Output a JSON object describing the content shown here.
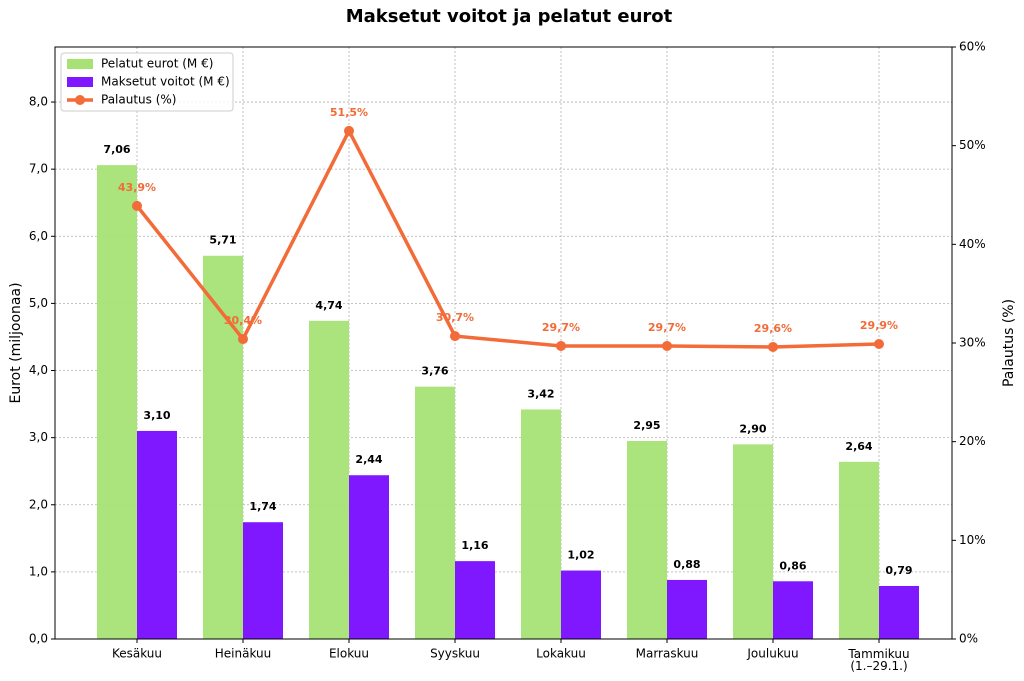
{
  "chart_data": {
    "type": "bar",
    "title": "Maksetut voitot ja pelatut eurot",
    "y_label": "Eurot (miljoonaa)",
    "y2_label": "Palautus (%)",
    "categories": [
      "Kesäkuu",
      "Heinäkuu",
      "Elokuu",
      "Syyskuu",
      "Lokakuu",
      "Marraskuu",
      "Joulukuu",
      "Tammikuu\n(1.–29.1.)"
    ],
    "series": [
      {
        "name": "Pelatut eurot (M €)",
        "type": "bar",
        "color": "#a6e275",
        "values": [
          7.06,
          5.71,
          4.74,
          3.76,
          3.42,
          2.95,
          2.9,
          2.64
        ],
        "value_labels": [
          "7,06",
          "5,71",
          "4,74",
          "3,76",
          "3,42",
          "2,95",
          "2,90",
          "2,64"
        ]
      },
      {
        "name": "Maksetut voitot (M €)",
        "type": "bar",
        "color": "#7f17ff",
        "values": [
          3.1,
          1.74,
          2.44,
          1.16,
          1.02,
          0.88,
          0.86,
          0.79
        ],
        "value_labels": [
          "3,10",
          "1,74",
          "2,44",
          "1,16",
          "1,02",
          "0,88",
          "0,86",
          "0,79"
        ]
      },
      {
        "name": "Palautus (%)",
        "type": "line",
        "axis": "y2",
        "color": "#f26b38",
        "values": [
          43.9,
          30.4,
          51.5,
          30.7,
          29.7,
          29.7,
          29.6,
          29.9
        ],
        "value_labels": [
          "43,9%",
          "30,4%",
          "51,5%",
          "30,7%",
          "29,7%",
          "29,7%",
          "29,6%",
          "29,9%"
        ]
      }
    ],
    "ylim": [
      0,
      8.82
    ],
    "yticks": [
      {
        "value": 0,
        "label": "0,0"
      },
      {
        "value": 1,
        "label": "1,0"
      },
      {
        "value": 2,
        "label": "2,0"
      },
      {
        "value": 3,
        "label": "3,0"
      },
      {
        "value": 4,
        "label": "4,0"
      },
      {
        "value": 5,
        "label": "5,0"
      },
      {
        "value": 6,
        "label": "6,0"
      },
      {
        "value": 7,
        "label": "7,0"
      },
      {
        "value": 8,
        "label": "8,0"
      }
    ],
    "y2lim": [
      0,
      60
    ],
    "y2ticks": [
      {
        "value": 0,
        "label": "0%"
      },
      {
        "value": 10,
        "label": "10%"
      },
      {
        "value": 20,
        "label": "20%"
      },
      {
        "value": 30,
        "label": "30%"
      },
      {
        "value": 40,
        "label": "40%"
      },
      {
        "value": 50,
        "label": "50%"
      },
      {
        "value": 60,
        "label": "60%"
      }
    ],
    "grid": true,
    "legend": "upper left"
  }
}
